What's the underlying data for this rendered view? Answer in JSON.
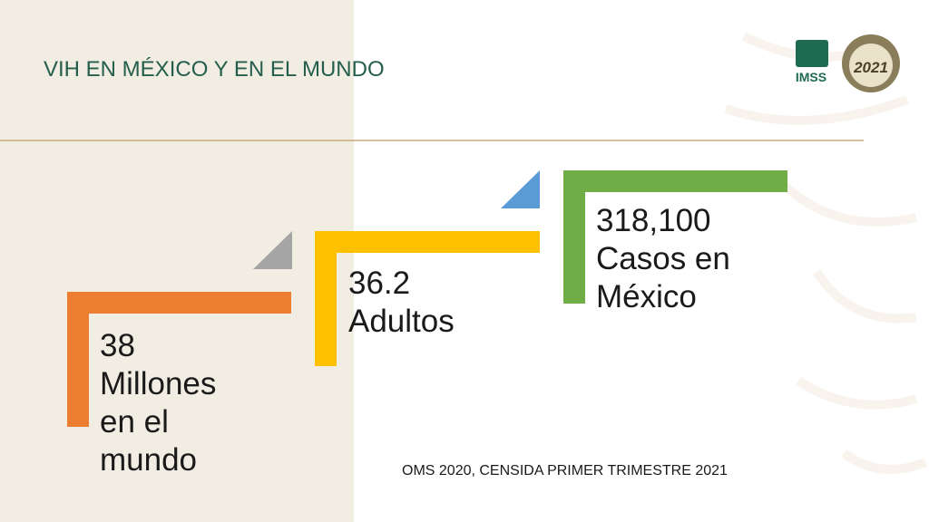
{
  "header": {
    "title": "VIH EN MÉXICO Y EN EL MUNDO",
    "logo_text": "IMSS",
    "emblem_year": "2021"
  },
  "steps": [
    {
      "lines": [
        "38",
        "Millones",
        "en el",
        "mundo"
      ]
    },
    {
      "lines": [
        "36.2",
        "Adultos"
      ]
    },
    {
      "lines": [
        "318,100",
        "Casos en",
        "México"
      ]
    }
  ],
  "source": "OMS 2020, CENSIDA  PRIMER TRIMESTRE  2021"
}
